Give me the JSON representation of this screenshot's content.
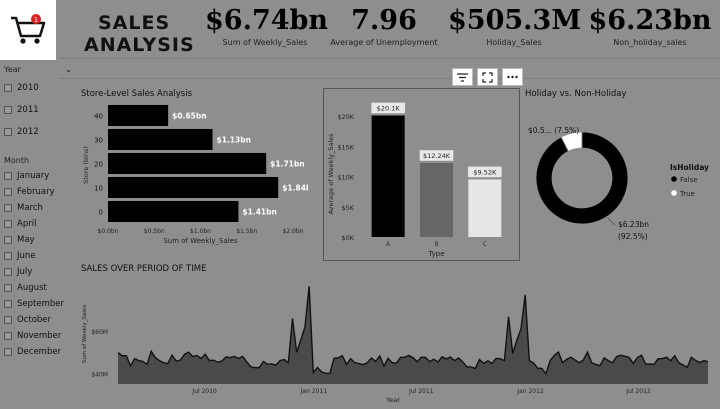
{
  "header": {
    "title_line1": "SALES",
    "title_line2": "ANALYSIS",
    "cart_badge": "1",
    "kpis": [
      {
        "value": "$6.74bn",
        "label": "Sum of Weekly_Sales"
      },
      {
        "value": "7.96",
        "label": "Average of Unemployment"
      },
      {
        "value": "$505.3M",
        "label": "Holiday_Sales"
      },
      {
        "value": "$6.23bn",
        "label": "Non_holiday_sales"
      }
    ]
  },
  "slicers": {
    "year": {
      "label": "Year",
      "items": [
        "2010",
        "2011",
        "2012"
      ]
    },
    "month": {
      "label": "Month",
      "items": [
        "January",
        "February",
        "March",
        "April",
        "May",
        "June",
        "July",
        "August",
        "September",
        "October",
        "November",
        "December"
      ]
    }
  },
  "toolbar": {
    "filter_icon": "filter-icon",
    "focus_icon": "focus-mode-icon",
    "more_icon": "more-options-icon"
  },
  "chart_data": [
    {
      "type": "bar",
      "orientation": "horizontal",
      "title": "Store-Level Sales Analysis",
      "categories": [
        "40",
        "30",
        "20",
        "10",
        "0"
      ],
      "values": [
        0.65,
        1.13,
        1.71,
        1.84,
        1.41
      ],
      "data_labels": [
        "$0.65bn",
        "$1.13bn",
        "$1.71bn",
        "$1.84bn",
        "$1.41bn"
      ],
      "xlabel": "Sum of Weekly_Sales",
      "ylabel": "Store (bins)",
      "xticks": [
        "$0.0bn",
        "$0.5bn",
        "$1.0bn",
        "$1.5bn",
        "$2.0bn"
      ],
      "xlim": [
        0,
        2.0
      ],
      "color": "#000000"
    },
    {
      "type": "bar",
      "title": "",
      "categories": [
        "A",
        "B",
        "C"
      ],
      "values": [
        20.1,
        12.24,
        9.52
      ],
      "data_labels": [
        "$20.1K",
        "$12.24K",
        "$9.52K"
      ],
      "colors": [
        "#000000",
        "#666666",
        "#e6e6e6"
      ],
      "xlabel": "Type",
      "ylabel": "Average of Weekly_Sales",
      "yticks": [
        "$0K",
        "$5K",
        "$10K",
        "$15K",
        "$20K"
      ],
      "ylim": [
        0,
        22
      ]
    },
    {
      "type": "pie",
      "title": "Holiday vs. Non-Holiday",
      "legend_title": "IsHoliday",
      "slices": [
        {
          "name": "False",
          "value": 92.5,
          "color": "#000000",
          "label_line1": "$6.23bn",
          "label_line2": "(92.5%)"
        },
        {
          "name": "True",
          "value": 7.5,
          "color": "#ffffff",
          "label_line1": "$0.5...",
          "label_line2": "(7.5%)"
        }
      ]
    },
    {
      "type": "area",
      "title": "SALES OVER PERIOD OF TIME",
      "xlabel": "Year",
      "ylabel": "Sum of Weekly_Sales",
      "yticks": [
        "$40M",
        "$60M"
      ],
      "ylim": [
        35,
        82
      ],
      "xticks": [
        "Jul 2010",
        "Jan 2011",
        "Jul 2011",
        "Jan 2012",
        "Jul 2012"
      ],
      "x": [
        "2010-02-05",
        "2010-02-12",
        "2010-02-19",
        "2010-02-26",
        "2010-03-05",
        "2010-03-12",
        "2010-03-19",
        "2010-03-26",
        "2010-04-02",
        "2010-04-09",
        "2010-04-16",
        "2010-04-23",
        "2010-04-30",
        "2010-05-07",
        "2010-05-14",
        "2010-05-21",
        "2010-05-28",
        "2010-06-04",
        "2010-06-11",
        "2010-06-18",
        "2010-06-25",
        "2010-07-02",
        "2010-07-09",
        "2010-07-16",
        "2010-07-23",
        "2010-07-30",
        "2010-08-06",
        "2010-08-13",
        "2010-08-20",
        "2010-08-27",
        "2010-09-03",
        "2010-09-10",
        "2010-09-17",
        "2010-09-24",
        "2010-10-01",
        "2010-10-08",
        "2010-10-15",
        "2010-10-22",
        "2010-10-29",
        "2010-11-05",
        "2010-11-12",
        "2010-11-19",
        "2010-11-26",
        "2010-12-03",
        "2010-12-10",
        "2010-12-17",
        "2010-12-24",
        "2010-12-31",
        "2011-01-07",
        "2011-01-14",
        "2011-01-21",
        "2011-01-28",
        "2011-02-04",
        "2011-02-11",
        "2011-02-18",
        "2011-02-25",
        "2011-03-04",
        "2011-03-11",
        "2011-03-18",
        "2011-03-25",
        "2011-04-01",
        "2011-04-08",
        "2011-04-15",
        "2011-04-22",
        "2011-04-29",
        "2011-05-06",
        "2011-05-13",
        "2011-05-20",
        "2011-05-27",
        "2011-06-03",
        "2011-06-10",
        "2011-06-17",
        "2011-06-24",
        "2011-07-01",
        "2011-07-08",
        "2011-07-15",
        "2011-07-22",
        "2011-07-29",
        "2011-08-05",
        "2011-08-12",
        "2011-08-19",
        "2011-08-26",
        "2011-09-02",
        "2011-09-09",
        "2011-09-16",
        "2011-09-23",
        "2011-09-30",
        "2011-10-07",
        "2011-10-14",
        "2011-10-21",
        "2011-10-28",
        "2011-11-04",
        "2011-11-11",
        "2011-11-18",
        "2011-11-25",
        "2011-12-02",
        "2011-12-09",
        "2011-12-16",
        "2011-12-23",
        "2011-12-30",
        "2012-01-06",
        "2012-01-13",
        "2012-01-20",
        "2012-01-27",
        "2012-02-03",
        "2012-02-10",
        "2012-02-17",
        "2012-02-24",
        "2012-03-02",
        "2012-03-09",
        "2012-03-16",
        "2012-03-23",
        "2012-03-30",
        "2012-04-06",
        "2012-04-13",
        "2012-04-20",
        "2012-04-27",
        "2012-05-04",
        "2012-05-11",
        "2012-05-18",
        "2012-05-25",
        "2012-06-01",
        "2012-06-08",
        "2012-06-15",
        "2012-06-22",
        "2012-06-29",
        "2012-07-06",
        "2012-07-13",
        "2012-07-20",
        "2012-07-27",
        "2012-08-03",
        "2012-08-10",
        "2012-08-17",
        "2012-08-24",
        "2012-08-31",
        "2012-09-07",
        "2012-09-14",
        "2012-09-21",
        "2012-09-28",
        "2012-10-05",
        "2012-10-12",
        "2012-10-19",
        "2012-10-26"
      ],
      "values": [
        49.8,
        48.3,
        48.3,
        43.5,
        46.9,
        46.0,
        45.6,
        44.2,
        50.4,
        47.4,
        45.9,
        45.0,
        44.6,
        48.5,
        45.8,
        46.2,
        48.9,
        50.0,
        47.9,
        48.4,
        47.0,
        49.0,
        46.0,
        46.2,
        45.2,
        45.8,
        47.7,
        47.4,
        48.0,
        47.0,
        48.0,
        45.3,
        43.0,
        42.7,
        42.7,
        45.6,
        44.3,
        44.4,
        43.9,
        46.0,
        46.5,
        45.0,
        65.8,
        49.9,
        55.7,
        61.8,
        80.9,
        40.4,
        42.8,
        40.7,
        40.0,
        40.0,
        47.1,
        47.3,
        48.3,
        44.2,
        46.9,
        45.0,
        44.6,
        44.1,
        45.0,
        47.2,
        45.6,
        48.2,
        43.4,
        47.0,
        45.0,
        44.8,
        47.5,
        47.6,
        48.4,
        47.4,
        45.4,
        47.6,
        47.5,
        45.5,
        46.6,
        45.3,
        47.8,
        46.8,
        47.7,
        46.0,
        47.2,
        45.3,
        43.0,
        43.0,
        42.3,
        46.5,
        44.7,
        45.9,
        44.7,
        47.0,
        46.9,
        45.9,
        66.6,
        49.4,
        55.6,
        61.0,
        76.9,
        46.0,
        44.9,
        42.5,
        42.3,
        39.8,
        46.0,
        48.4,
        50.0,
        45.0,
        46.6,
        47.6,
        46.3,
        45.0,
        46.3,
        50.0,
        45.0,
        44.2,
        43.6,
        47.2,
        46.0,
        45.0,
        47.8,
        48.5,
        48.1,
        47.5,
        44.7,
        47.4,
        48.5,
        44.3,
        44.4,
        44.2,
        46.9,
        46.9,
        47.6,
        45.9,
        48.3,
        44.9,
        44.0,
        42.8,
        47.6,
        46.1,
        45.1,
        46.0,
        45.5
      ]
    }
  ]
}
